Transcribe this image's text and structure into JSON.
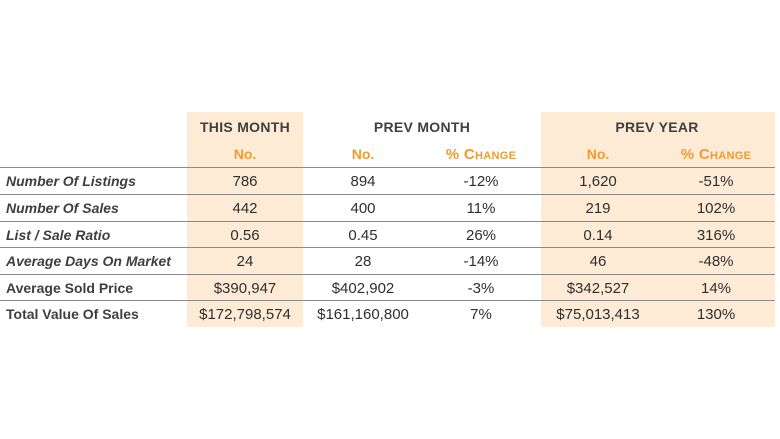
{
  "headers": {
    "this_month": "THIS MONTH",
    "prev_month": "PREV MONTH",
    "prev_year": "PREV YEAR",
    "no": "No.",
    "pct_change": "% Change"
  },
  "rows": [
    {
      "label": "Number Of Listings",
      "italic": true,
      "this_no": "786",
      "prev_m_no": "894",
      "prev_m_pct": "-12%",
      "prev_y_no": "1,620",
      "prev_y_pct": "-51%"
    },
    {
      "label": "Number Of Sales",
      "italic": true,
      "this_no": "442",
      "prev_m_no": "400",
      "prev_m_pct": "11%",
      "prev_y_no": "219",
      "prev_y_pct": "102%"
    },
    {
      "label": "List / Sale Ratio",
      "italic": true,
      "this_no": "0.56",
      "prev_m_no": "0.45",
      "prev_m_pct": "26%",
      "prev_y_no": "0.14",
      "prev_y_pct": "316%"
    },
    {
      "label": "Average Days On Market",
      "italic": true,
      "this_no": "24",
      "prev_m_no": "28",
      "prev_m_pct": "-14%",
      "prev_y_no": "46",
      "prev_y_pct": "-48%"
    },
    {
      "label": "Average Sold Price",
      "italic": false,
      "this_no": "$390,947",
      "prev_m_no": "$402,902",
      "prev_m_pct": "-3%",
      "prev_y_no": "$342,527",
      "prev_y_pct": "14%"
    },
    {
      "label": "Total Value Of Sales",
      "italic": false,
      "this_no": "$172,798,574",
      "prev_m_no": "$161,160,800",
      "prev_m_pct": "7%",
      "prev_y_no": "$75,013,413",
      "prev_y_pct": "130%"
    }
  ],
  "colors": {
    "accent": "#f29a2e",
    "shade": "#fdebd6",
    "rule": "#8a8a8a"
  }
}
